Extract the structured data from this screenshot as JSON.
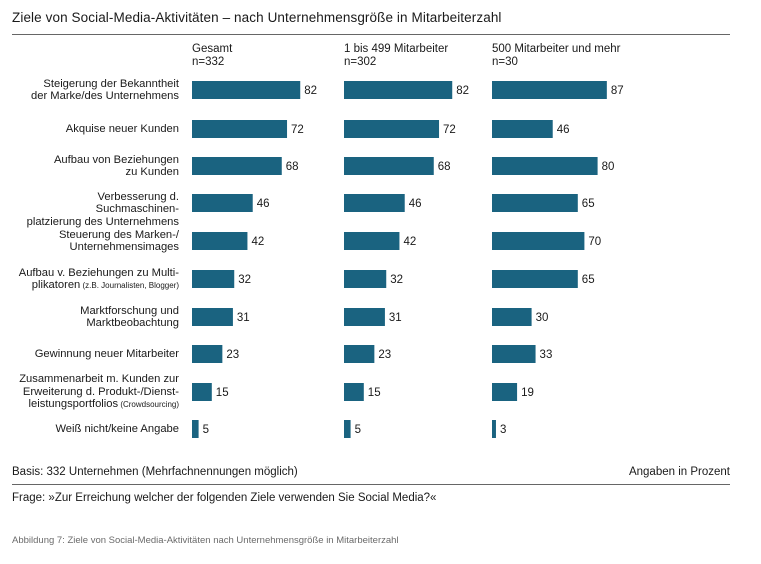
{
  "title": "Ziele von Social-Media-Aktivitäten – nach Unternehmensgröße in Mitarbeiterzahl",
  "footer": {
    "basis": "Basis: 332 Unternehmen (Mehrfachnennungen möglich)",
    "unit": "Angaben in Prozent",
    "question": "Frage: »Zur Erreichung welcher der folgenden Ziele verwenden Sie Social Media?«",
    "caption": "Abbildung 7: Ziele von Social-Media-Aktivitäten nach Unternehmensgröße in Mitarbeiterzahl"
  },
  "chart_data": {
    "type": "bar",
    "orientation": "horizontal",
    "bar_color": "#1a6380",
    "categories": [
      {
        "lines": [
          "Steigerung der Bekanntheit",
          "der Marke/des Unternehmens"
        ]
      },
      {
        "lines": [
          "Akquise neuer Kunden"
        ]
      },
      {
        "lines": [
          "Aufbau von Beziehungen",
          "zu Kunden"
        ]
      },
      {
        "lines": [
          "Verbesserung d. Suchmaschinen-",
          "platzierung des Unternehmens"
        ]
      },
      {
        "lines": [
          "Steuerung des Marken-/",
          "Unternehmensimages"
        ]
      },
      {
        "lines": [
          "Aufbau v. Beziehungen zu Multi-",
          "plikatoren"
        ],
        "note": "(z.B. Journalisten, Blogger)"
      },
      {
        "lines": [
          "Marktforschung und",
          "Marktbeobachtung"
        ]
      },
      {
        "lines": [
          "Gewinnung neuer Mitarbeiter"
        ]
      },
      {
        "lines": [
          "Zusammenarbeit m. Kunden zur",
          "Erweiterung d. Produkt-/Dienst-",
          "leistungsportfolios"
        ],
        "note": "(Crowdsourcing)"
      },
      {
        "lines": [
          "Weiß nicht/keine Angabe"
        ]
      }
    ],
    "series": [
      {
        "name": "Gesamt",
        "n": "n=332",
        "values": [
          82,
          72,
          68,
          46,
          42,
          32,
          31,
          23,
          15,
          5
        ]
      },
      {
        "name": "1 bis 499 Mitarbeiter",
        "n": "n=302",
        "values": [
          82,
          72,
          68,
          46,
          42,
          32,
          31,
          23,
          15,
          5
        ]
      },
      {
        "name": "500 Mitarbeiter und mehr",
        "n": "n=30",
        "values": [
          87,
          46,
          80,
          65,
          70,
          65,
          30,
          33,
          19,
          3
        ]
      }
    ]
  }
}
